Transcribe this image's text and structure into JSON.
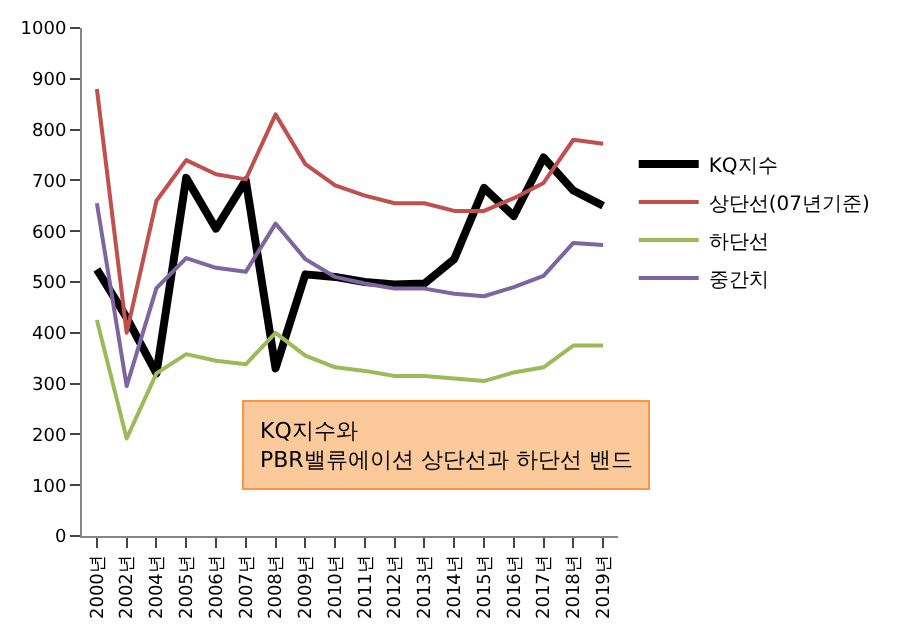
{
  "chart_data": {
    "type": "line",
    "categories": [
      "2000년",
      "2002년",
      "2004년",
      "2005년",
      "2006년",
      "2007년",
      "2008년",
      "2009년",
      "2010년",
      "2011년",
      "2012년",
      "2013년",
      "2014년",
      "2015년",
      "2016년",
      "2017년",
      "2018년",
      "2019년"
    ],
    "series": [
      {
        "name": "KQ지수",
        "color": "#000000",
        "values": [
          525,
          430,
          320,
          705,
          605,
          700,
          330,
          515,
          510,
          500,
          495,
          497,
          545,
          685,
          630,
          745,
          680,
          650
        ]
      },
      {
        "name": "상단선(07년기준)",
        "color": "#c0504d",
        "values": [
          880,
          400,
          660,
          740,
          712,
          702,
          830,
          732,
          690,
          670,
          655,
          655,
          640,
          640,
          665,
          695,
          780,
          772
        ]
      },
      {
        "name": "하단선",
        "color": "#9bbb59",
        "values": [
          425,
          192,
          320,
          358,
          345,
          338,
          400,
          355,
          332,
          325,
          315,
          315,
          310,
          305,
          322,
          332,
          375,
          375
        ]
      },
      {
        "name": "중간치",
        "color": "#8064a2",
        "values": [
          655,
          295,
          488,
          547,
          528,
          520,
          615,
          545,
          510,
          497,
          487,
          487,
          477,
          472,
          490,
          512,
          577,
          573
        ]
      }
    ],
    "ylim": [
      0,
      1000
    ],
    "yticks": [
      0,
      100,
      200,
      300,
      400,
      500,
      600,
      700,
      800,
      900,
      1000
    ],
    "annotations": [
      "KQ지수와\nPBR밸류에이션 상단선과 하단선 밴드"
    ],
    "legend": "right",
    "marker": "none",
    "line_style": "solid"
  }
}
